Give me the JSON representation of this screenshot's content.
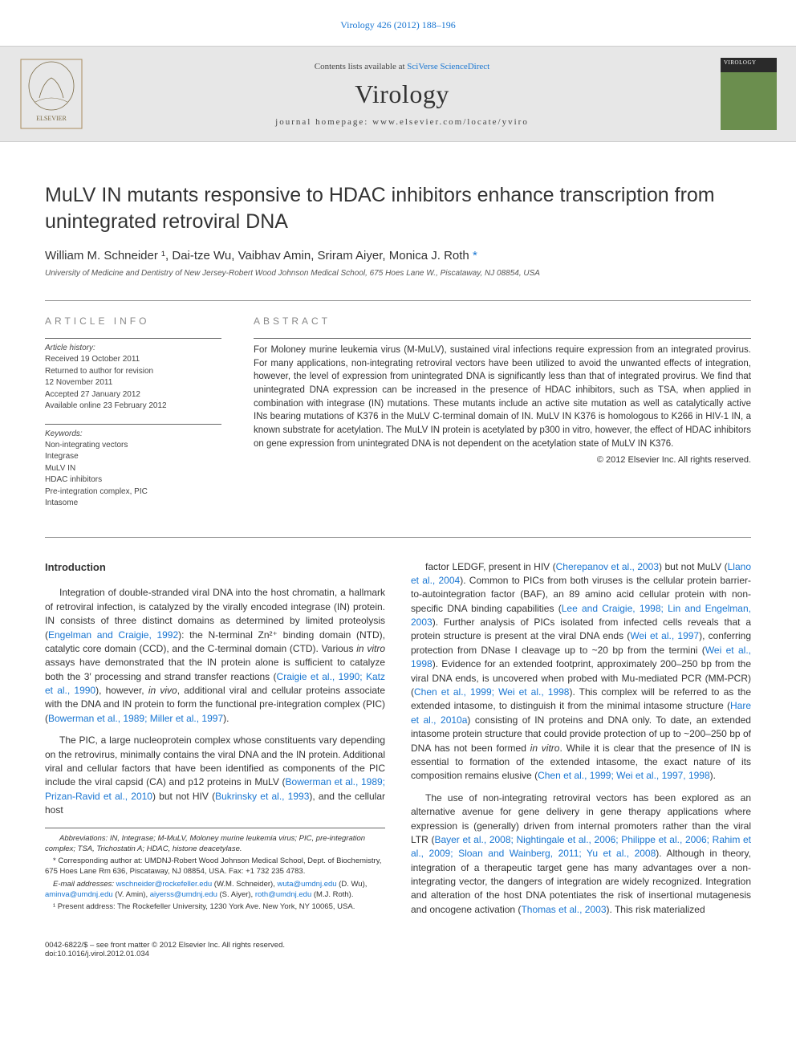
{
  "top_citation": "Virology 426 (2012) 188–196",
  "banner": {
    "contents_prefix": "Contents lists available at ",
    "contents_link": "SciVerse ScienceDirect",
    "journal": "Virology",
    "homepage": "journal homepage: www.elsevier.com/locate/yviro",
    "cover_title": "VIROLOGY"
  },
  "article": {
    "title": "MuLV IN mutants responsive to HDAC inhibitors enhance transcription from unintegrated retroviral DNA",
    "authors_html": "William M. Schneider ¹, Dai-tze Wu, Vaibhav Amin, Sriram Aiyer, Monica J. Roth ",
    "asterisk": "*",
    "affiliation": "University of Medicine and Dentistry of New Jersey-Robert Wood Johnson Medical School, 675 Hoes Lane W., Piscataway, NJ 08854, USA"
  },
  "article_info": {
    "heading": "ARTICLE INFO",
    "history_label": "Article history:",
    "history": [
      "Received 19 October 2011",
      "Returned to author for revision",
      "12 November 2011",
      "Accepted 27 January 2012",
      "Available online 23 February 2012"
    ],
    "keywords_label": "Keywords:",
    "keywords": [
      "Non-integrating vectors",
      "Integrase",
      "MuLV IN",
      "HDAC inhibitors",
      "Pre-integration complex, PIC",
      "Intasome"
    ]
  },
  "abstract": {
    "heading": "ABSTRACT",
    "text": "For Moloney murine leukemia virus (M-MuLV), sustained viral infections require expression from an integrated provirus. For many applications, non-integrating retroviral vectors have been utilized to avoid the unwanted effects of integration, however, the level of expression from unintegrated DNA is significantly less than that of integrated provirus. We find that unintegrated DNA expression can be increased in the presence of HDAC inhibitors, such as TSA, when applied in combination with integrase (IN) mutations. These mutants include an active site mutation as well as catalytically active INs bearing mutations of K376 in the MuLV C-terminal domain of IN. MuLV IN K376 is homologous to K266 in HIV-1 IN, a known substrate for acetylation. The MuLV IN protein is acetylated by p300 in vitro, however, the effect of HDAC inhibitors on gene expression from unintegrated DNA is not dependent on the acetylation state of MuLV IN K376.",
    "copyright": "© 2012 Elsevier Inc. All rights reserved."
  },
  "body": {
    "intro_heading": "Introduction",
    "left_paras": [
      "Integration of double-stranded viral DNA into the host chromatin, a hallmark of retroviral infection, is catalyzed by the virally encoded integrase (IN) protein. IN consists of three distinct domains as determined by limited proteolysis (Engelman and Craigie, 1992): the N-terminal Zn²⁺ binding domain (NTD), catalytic core domain (CCD), and the C-terminal domain (CTD). Various in vitro assays have demonstrated that the IN protein alone is sufficient to catalyze both the 3′ processing and strand transfer reactions (Craigie et al., 1990; Katz et al., 1990), however, in vivo, additional viral and cellular proteins associate with the DNA and IN protein to form the functional pre-integration complex (PIC) (Bowerman et al., 1989; Miller et al., 1997).",
      "The PIC, a large nucleoprotein complex whose constituents vary depending on the retrovirus, minimally contains the viral DNA and the IN protein. Additional viral and cellular factors that have been identified as components of the PIC include the viral capsid (CA) and p12 proteins in MuLV (Bowerman et al., 1989; Prizan-Ravid et al., 2010) but not HIV (Bukrinsky et al., 1993), and the cellular host"
    ],
    "right_paras": [
      "factor LEDGF, present in HIV (Cherepanov et al., 2003) but not MuLV (Llano et al., 2004). Common to PICs from both viruses is the cellular protein barrier-to-autointegration factor (BAF), an 89 amino acid cellular protein with non-specific DNA binding capabilities (Lee and Craigie, 1998; Lin and Engelman, 2003). Further analysis of PICs isolated from infected cells reveals that a protein structure is present at the viral DNA ends (Wei et al., 1997), conferring protection from DNase I cleavage up to ~20 bp from the termini (Wei et al., 1998). Evidence for an extended footprint, approximately 200–250 bp from the viral DNA ends, is uncovered when probed with Mu-mediated PCR (MM-PCR) (Chen et al., 1999; Wei et al., 1998). This complex will be referred to as the extended intasome, to distinguish it from the minimal intasome structure (Hare et al., 2010a) consisting of IN proteins and DNA only. To date, an extended intasome protein structure that could provide protection of up to ~200–250 bp of DNA has not been formed in vitro. While it is clear that the presence of IN is essential to formation of the extended intasome, the exact nature of its composition remains elusive (Chen et al., 1999; Wei et al., 1997, 1998).",
      "The use of non-integrating retroviral vectors has been explored as an alternative avenue for gene delivery in gene therapy applications where expression is (generally) driven from internal promoters rather than the viral LTR (Bayer et al., 2008; Nightingale et al., 2006; Philippe et al., 2006; Rahim et al., 2009; Sloan and Wainberg, 2011; Yu et al., 2008). Although in theory, integration of a therapeutic target gene has many advantages over a non-integrating vector, the dangers of integration are widely recognized. Integration and alteration of the host DNA potentiates the risk of insertional mutagenesis and oncogene activation (Thomas et al., 2003). This risk materialized"
    ]
  },
  "footnotes": {
    "abbrev": "Abbreviations: IN, Integrase; M-MuLV, Moloney murine leukemia virus; PIC, pre-integration complex; TSA, Trichostatin A; HDAC, histone deacetylase.",
    "corresponding": "* Corresponding author at: UMDNJ-Robert Wood Johnson Medical School, Dept. of Biochemistry, 675 Hoes Lane Rm 636, Piscataway, NJ 08854, USA. Fax: +1 732 235 4783.",
    "emails_label": "E-mail addresses: ",
    "emails": [
      {
        "addr": "wschneider@rockefeller.edu",
        "who": " (W.M. Schneider), "
      },
      {
        "addr": "wuta@umdnj.edu",
        "who": " (D. Wu), "
      },
      {
        "addr": "aminva@umdnj.edu",
        "who": " (V. Amin), "
      },
      {
        "addr": "aiyerss@umdnj.edu",
        "who": " (S. Aiyer), "
      },
      {
        "addr": "roth@umdnj.edu",
        "who": " (M.J. Roth)."
      }
    ],
    "present": "¹ Present address: The Rockefeller University, 1230 York Ave. New York, NY 10065, USA."
  },
  "footer": {
    "line1": "0042-6822/$ – see front matter © 2012 Elsevier Inc. All rights reserved.",
    "doi": "doi:10.1016/j.virol.2012.01.034"
  },
  "colors": {
    "link": "#1976d2",
    "banner_bg": "#e7e7e7",
    "text": "#333333",
    "rule": "#999999",
    "cover_green": "#6b8e4e"
  }
}
